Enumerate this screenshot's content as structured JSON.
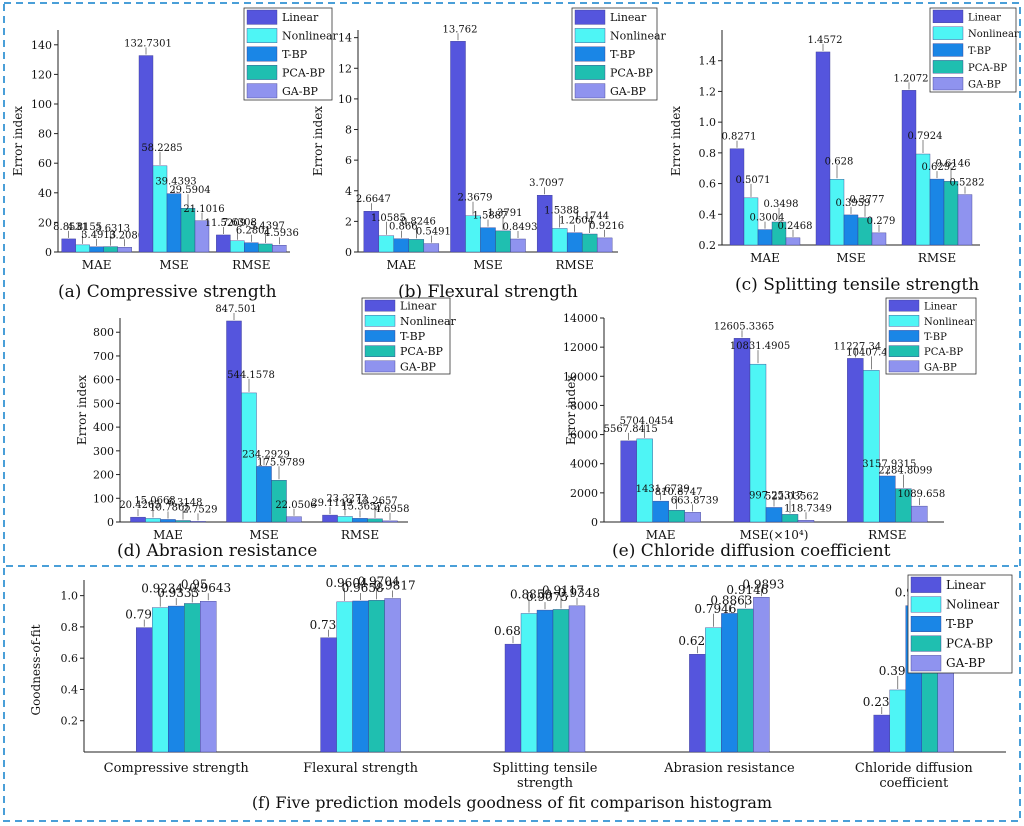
{
  "colors": {
    "border": "#4a9fd8",
    "series": [
      "#5555dd",
      "#4ef5f5",
      "#1a86e6",
      "#1fbfb0",
      "#8f93ef"
    ]
  },
  "chart_data": [
    {
      "type": "bar",
      "panel_caption": "(a) Compressive strength",
      "ylabel": "Error index",
      "categories": [
        "MAE",
        "MSE",
        "RMSE"
      ],
      "legend": [
        "Linear",
        "Nonlinear",
        "T-BP",
        "PCA-BP",
        "GA-BP"
      ],
      "ylim": [
        0,
        150
      ],
      "yticks": [
        0,
        20,
        40,
        60,
        80,
        100,
        120,
        140
      ],
      "series": [
        {
          "name": "Linear",
          "values": [
            8.8531,
            132.7301,
            11.5209
          ],
          "labels": [
            "8.8531",
            "132.7301",
            "11.5209"
          ]
        },
        {
          "name": "Nonlinear",
          "values": [
            4.8155,
            58.2285,
            7.6308
          ],
          "labels": [
            "4.8155",
            "58.2285",
            "7.6308"
          ]
        },
        {
          "name": "T-BP",
          "values": [
            3.4913,
            39.4393,
            6.2801
          ],
          "labels": [
            "3.4913",
            "39.4393",
            "6.2801"
          ]
        },
        {
          "name": "PCA-BP",
          "values": [
            3.6313,
            29.5904,
            5.4397
          ],
          "labels": [
            "3.6313",
            "29.5904",
            "5.4397"
          ]
        },
        {
          "name": "GA-BP",
          "values": [
            3.2086,
            21.1016,
            4.5936
          ],
          "labels": [
            "3.2086",
            "21.1016",
            "4.5936"
          ]
        }
      ]
    },
    {
      "type": "bar",
      "panel_caption": "(b) Flexural strength",
      "ylabel": "Error index",
      "categories": [
        "MAE",
        "MSE",
        "RMSE"
      ],
      "legend": [
        "Linear",
        "Nonlinear",
        "T-BP",
        "PCA-BP",
        "GA-BP"
      ],
      "ylim": [
        0,
        14.5
      ],
      "yticks": [
        0,
        2,
        4,
        6,
        8,
        10,
        12,
        14
      ],
      "series": [
        {
          "name": "Linear",
          "values": [
            2.6647,
            13.762,
            3.7097
          ],
          "labels": [
            "2.6647",
            "13.762",
            "3.7097"
          ]
        },
        {
          "name": "Nonlinear",
          "values": [
            1.0585,
            2.3679,
            1.5388
          ],
          "labels": [
            "1.0585",
            "2.3679",
            "1.5388"
          ]
        },
        {
          "name": "T-BP",
          "values": [
            0.866,
            1.5887,
            1.2604
          ],
          "labels": [
            "0.866",
            "1.5887",
            "1.2604"
          ]
        },
        {
          "name": "PCA-BP",
          "values": [
            0.8246,
            1.3791,
            1.1744
          ],
          "labels": [
            "0.8246",
            "1.3791",
            "1.1744"
          ]
        },
        {
          "name": "GA-BP",
          "values": [
            0.5491,
            0.8493,
            0.9216
          ],
          "labels": [
            "0.5491",
            "0.8493",
            "0.9216"
          ]
        }
      ]
    },
    {
      "type": "bar",
      "panel_caption": "(c) Splitting tensile strength",
      "ylabel": "Error index",
      "categories": [
        "MAE",
        "MSE",
        "RMSE"
      ],
      "legend": [
        "Linear",
        "Nonlinear",
        "T-BP",
        "PCA-BP",
        "GA-BP"
      ],
      "ylim": [
        0.2,
        1.6
      ],
      "yticks": [
        0.2,
        0.4,
        0.6,
        0.8,
        1.0,
        1.2,
        1.4
      ],
      "series": [
        {
          "name": "Linear",
          "values": [
            0.8271,
            1.4572,
            1.2072
          ],
          "labels": [
            "0.8271",
            "1.4572",
            "1.2072"
          ]
        },
        {
          "name": "Nonlinear",
          "values": [
            0.5071,
            0.628,
            0.7924
          ],
          "labels": [
            "0.5071",
            "0.628",
            "0.7924"
          ]
        },
        {
          "name": "T-BP",
          "values": [
            0.3004,
            0.3959,
            0.6292
          ],
          "labels": [
            "0.3004",
            "0.3959",
            "0.6292"
          ]
        },
        {
          "name": "PCA-BP",
          "values": [
            0.3498,
            0.3777,
            0.6146
          ],
          "labels": [
            "0.3498",
            "0.3777",
            "0.6146"
          ]
        },
        {
          "name": "GA-BP",
          "values": [
            0.2468,
            0.279,
            0.5282
          ],
          "labels": [
            "0.2468",
            "0.279",
            "0.5282"
          ]
        }
      ]
    },
    {
      "type": "bar",
      "panel_caption": "(d) Abrasion resistance",
      "ylabel": "Error index",
      "categories": [
        "MAE",
        "MSE",
        "RMSE"
      ],
      "legend": [
        "Linear",
        "Nonlinear",
        "T-BP",
        "PCA-BP",
        "GA-BP"
      ],
      "ylim": [
        0,
        860
      ],
      "yticks": [
        0,
        100,
        200,
        300,
        400,
        500,
        600,
        700,
        800
      ],
      "series": [
        {
          "name": "Linear",
          "values": [
            20.4265,
            847.501,
            29.1119
          ],
          "labels": [
            "20.4265",
            "847.501",
            "29.1119"
          ]
        },
        {
          "name": "Nonlinear",
          "values": [
            15.0668,
            544.1578,
            23.3272
          ],
          "labels": [
            "15.0668",
            "544.1578",
            "23.3272"
          ]
        },
        {
          "name": "T-BP",
          "values": [
            10.7865,
            234.2929,
            15.3657
          ],
          "labels": [
            "10.7865",
            "234.2929",
            "15.3657"
          ]
        },
        {
          "name": "PCA-BP",
          "values": [
            6.3148,
            175.9789,
            13.2657
          ],
          "labels": [
            "6.3148",
            "175.9789",
            "13.2657"
          ]
        },
        {
          "name": "GA-BP",
          "values": [
            2.7529,
            22.0506,
            4.6958
          ],
          "labels": [
            "2.7529",
            "22.0506",
            "4.6958"
          ]
        }
      ]
    },
    {
      "type": "bar",
      "panel_caption": "(e) Chloride diffusion coefficient",
      "ylabel": "Error index",
      "categories": [
        "MAE",
        "MSE(×10⁴)",
        "RMSE"
      ],
      "legend": [
        "Linear",
        "Nonlinear",
        "T-BP",
        "PCA-BP",
        "GA-BP"
      ],
      "ylim": [
        0,
        14000
      ],
      "yticks": [
        0,
        2000,
        4000,
        6000,
        8000,
        10000,
        12000,
        14000
      ],
      "series": [
        {
          "name": "Linear",
          "values": [
            5567.8415,
            12605.3365,
            11227.34
          ],
          "labels": [
            "5567.8415",
            "12605.3365",
            "11227.34"
          ]
        },
        {
          "name": "Nonlinear",
          "values": [
            5704.0454,
            10831.4905,
            10407.447
          ],
          "labels": [
            "5704.0454",
            "10831.4905",
            "10407.447"
          ]
        },
        {
          "name": "T-BP",
          "values": [
            1431.6729,
            997.25317,
            3157.9315
          ],
          "labels": [
            "1431.6729",
            "997.25317",
            "3157.9315"
          ]
        },
        {
          "name": "PCA-BP",
          "values": [
            810.8747,
            522.03562,
            2284.8099
          ],
          "labels": [
            "810.8747",
            "522.03562",
            "2284.8099"
          ]
        },
        {
          "name": "GA-BP",
          "values": [
            663.8739,
            118.7349,
            1089.658
          ],
          "labels": [
            "663.8739",
            "118.7349",
            "1089.658"
          ]
        }
      ]
    },
    {
      "type": "bar",
      "panel_caption": "(f) Five prediction models goodness of fit comparison histogram",
      "ylabel": "Goodness-of-fit",
      "categories": [
        "Compressive strength",
        "Flexural strength",
        "Splitting tensile strength",
        "Abrasion resistance",
        "Chloride diffusion coefficient"
      ],
      "category_lines": [
        [
          "Compressive strength"
        ],
        [
          "Flexural strength"
        ],
        [
          "Splitting tensile",
          "strength"
        ],
        [
          "Abrasion resistance"
        ],
        [
          "Chloride diffusion",
          "coefficient"
        ]
      ],
      "legend": [
        "Linear",
        "Nolinear",
        "T-BP",
        "PCA-BP",
        "GA-BP"
      ],
      "ylim": [
        0,
        1.1
      ],
      "yticks": [
        0.2,
        0.4,
        0.6,
        0.8,
        1.0
      ],
      "series": [
        {
          "name": "Linear",
          "values": [
            0.7955,
            0.7304,
            0.6898,
            0.6252,
            0.2363
          ],
          "labels": [
            "0.7955",
            "0.7304",
            "0.6898",
            "0.6252",
            "0.2363"
          ]
        },
        {
          "name": "Nolinear",
          "values": [
            0.9234,
            0.9604,
            0.8859,
            0.7946,
            0.3968
          ],
          "labels": [
            "0.9234",
            "0.9604",
            "0.8859",
            "0.7946",
            "0.3968"
          ]
        },
        {
          "name": "T-BP",
          "values": [
            0.9333,
            0.9658,
            0.9075,
            0.8863,
            0.9359
          ],
          "labels": [
            "0.9333",
            "0.9658",
            "0.9075",
            "0.8863",
            "0.9359"
          ]
        },
        {
          "name": "PCA-BP",
          "values": [
            0.95,
            0.9704,
            0.9117,
            0.9146,
            0.9665
          ],
          "labels": [
            "0.95",
            "0.9704",
            "0.9117",
            "0.9146",
            "0.9665"
          ]
        },
        {
          "name": "GA-BP",
          "values": [
            0.9643,
            0.9817,
            0.9348,
            0.9893,
            0.9924
          ],
          "labels": [
            "0.9643",
            "0.9817",
            "0.9348",
            "0.9893",
            "0.9924"
          ]
        }
      ]
    }
  ]
}
